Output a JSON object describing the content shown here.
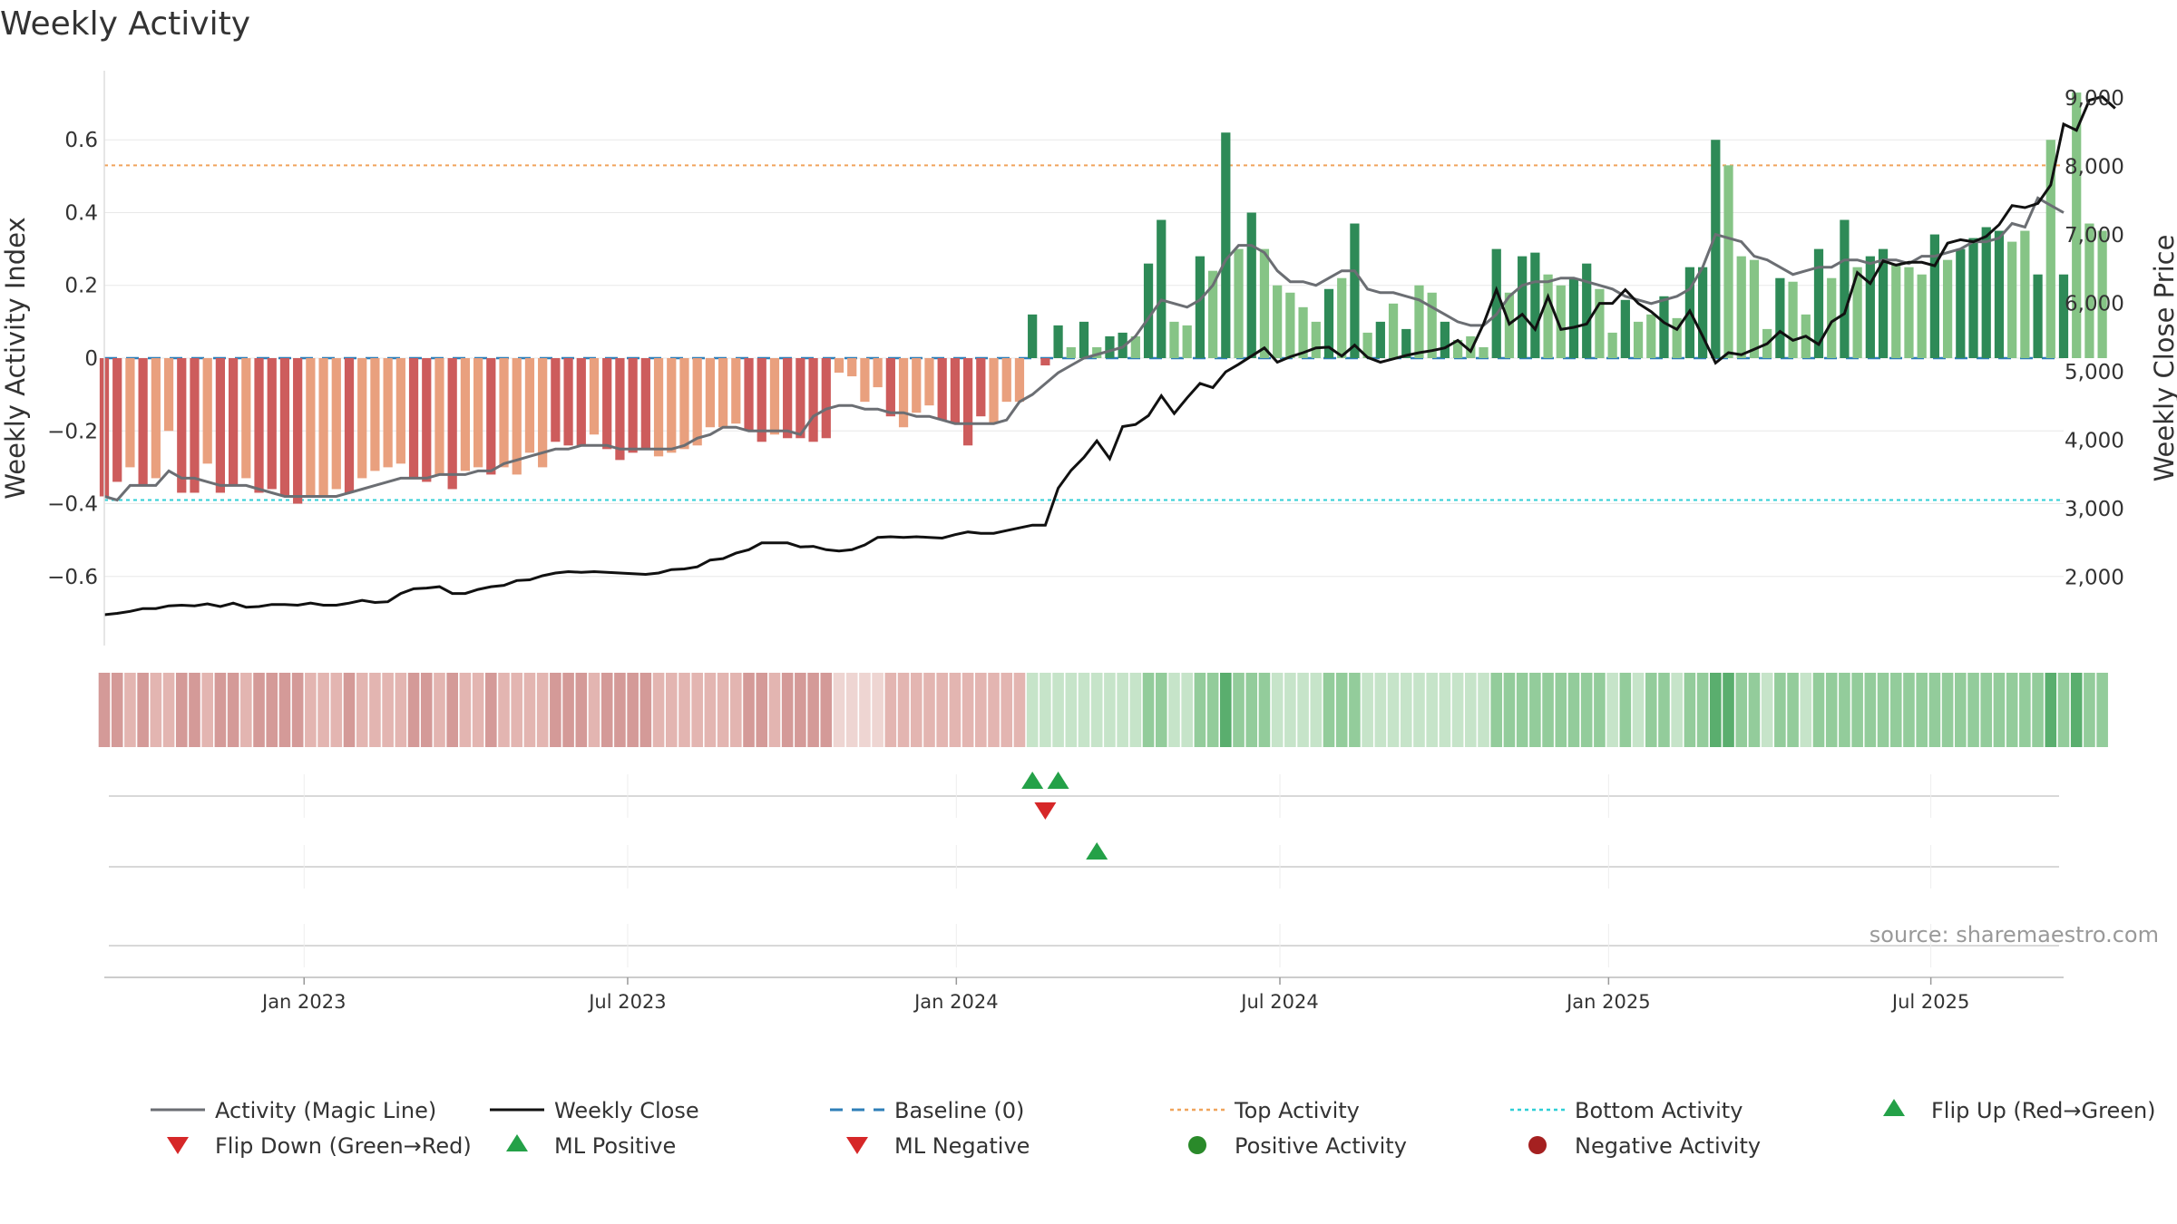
{
  "colors": {
    "magic_line": "#6b6e73",
    "weekly_close": "#111111",
    "baseline": "#2f7fb8",
    "top_activity": "#f0a45c",
    "bottom_activity": "#2fcfd6",
    "positive_dark": "#2e8a57",
    "positive_light": "#86c486",
    "negative_dark": "#cd5c5c",
    "negative_light": "#e9a07e",
    "marker_up": "#24a148",
    "marker_down": "#d62728",
    "positive_dot": "#2a8a2a",
    "negative_dot": "#a52020",
    "grid": "#e8e8e8",
    "source": "#999999"
  },
  "chart_data": {
    "type": "bar",
    "title": "Weekly Activity",
    "ylabel": "Weekly Activity Index",
    "y2label": "Weekly Close Price",
    "source": "source: sharemaestro.com",
    "ylim": [
      -0.79,
      0.79
    ],
    "y2lim": [
      1000,
      9400
    ],
    "yticks": [
      -0.6,
      -0.4,
      -0.2,
      0,
      0.2,
      0.4,
      0.6
    ],
    "ytick_labels": [
      "−0.6",
      "−0.4",
      "−0.2",
      "0",
      "0.2",
      "0.4",
      "0.6"
    ],
    "y2ticks": [
      2000,
      3000,
      4000,
      5000,
      6000,
      7000,
      8000,
      9000
    ],
    "y2tick_labels": [
      "2,000",
      "3,000",
      "4,000",
      "5,000",
      "6,000",
      "7,000",
      "8,000",
      "9,000"
    ],
    "x_week_range": [
      0,
      152
    ],
    "xticks": [
      {
        "label": "Jan 2023",
        "week": 15.5
      },
      {
        "label": "Jul 2023",
        "week": 40.6
      },
      {
        "label": "Jan 2024",
        "week": 66.1
      },
      {
        "label": "Jul 2024",
        "week": 91.2
      },
      {
        "label": "Jan 2025",
        "week": 116.7
      },
      {
        "label": "Jul 2025",
        "week": 141.7
      }
    ],
    "top_activity": 0.53,
    "bottom_activity": -0.39,
    "baseline": 0,
    "activity_index": [
      -0.38,
      -0.34,
      -0.3,
      -0.35,
      -0.33,
      -0.2,
      -0.37,
      -0.37,
      -0.29,
      -0.37,
      -0.35,
      -0.33,
      -0.37,
      -0.36,
      -0.38,
      -0.4,
      -0.38,
      -0.38,
      -0.36,
      -0.37,
      -0.33,
      -0.31,
      -0.3,
      -0.29,
      -0.33,
      -0.34,
      -0.32,
      -0.36,
      -0.31,
      -0.3,
      -0.32,
      -0.3,
      -0.32,
      -0.26,
      -0.3,
      -0.23,
      -0.24,
      -0.24,
      -0.21,
      -0.25,
      -0.28,
      -0.26,
      -0.25,
      -0.27,
      -0.26,
      -0.25,
      -0.24,
      -0.19,
      -0.19,
      -0.18,
      -0.2,
      -0.23,
      -0.21,
      -0.22,
      -0.22,
      -0.23,
      -0.22,
      -0.04,
      -0.05,
      -0.12,
      -0.08,
      -0.16,
      -0.19,
      -0.15,
      -0.13,
      -0.17,
      -0.18,
      -0.24,
      -0.16,
      -0.18,
      -0.12,
      -0.12,
      0.12,
      -0.02,
      0.09,
      0.03,
      0.1,
      0.03,
      0.06,
      0.07,
      0.06,
      0.26,
      0.38,
      0.1,
      0.09,
      0.28,
      0.24,
      0.62,
      0.3,
      0.4,
      0.3,
      0.2,
      0.18,
      0.14,
      0.1,
      0.19,
      0.22,
      0.37,
      0.07,
      0.1,
      0.15,
      0.08,
      0.2,
      0.18,
      0.1,
      0.05,
      0.06,
      0.03,
      0.3,
      0.18,
      0.28,
      0.29,
      0.23,
      0.2,
      0.22,
      0.26,
      0.19,
      0.07,
      0.16,
      0.1,
      0.12,
      0.17,
      0.11,
      0.25,
      0.25,
      0.6,
      0.53,
      0.28,
      0.27,
      0.08,
      0.22,
      0.21,
      0.12,
      0.3,
      0.22,
      0.38,
      0.25,
      0.28,
      0.3,
      0.26,
      0.25,
      0.23,
      0.34,
      0.27,
      0.3,
      0.33,
      0.36,
      0.35,
      0.32,
      0.35,
      0.23,
      0.6,
      0.23,
      0.73,
      0.37,
      0.35
    ],
    "activity_dark": [
      true,
      true,
      false,
      true,
      false,
      false,
      true,
      true,
      false,
      true,
      true,
      false,
      true,
      true,
      true,
      true,
      false,
      false,
      false,
      true,
      false,
      false,
      false,
      false,
      true,
      true,
      false,
      true,
      false,
      false,
      true,
      false,
      false,
      false,
      false,
      true,
      true,
      true,
      false,
      true,
      true,
      true,
      true,
      false,
      false,
      false,
      false,
      false,
      false,
      false,
      true,
      true,
      false,
      true,
      true,
      true,
      true,
      false,
      false,
      false,
      false,
      true,
      false,
      false,
      false,
      true,
      true,
      true,
      true,
      false,
      false,
      false,
      true,
      true,
      true,
      false,
      true,
      false,
      true,
      true,
      false,
      true,
      true,
      false,
      false,
      true,
      false,
      true,
      false,
      true,
      false,
      false,
      false,
      false,
      false,
      true,
      false,
      true,
      false,
      true,
      false,
      true,
      false,
      false,
      true,
      false,
      false,
      false,
      true,
      false,
      true,
      true,
      false,
      false,
      true,
      true,
      false,
      false,
      true,
      false,
      false,
      true,
      false,
      true,
      true,
      true,
      false,
      false,
      false,
      false,
      true,
      false,
      false,
      true,
      false,
      true,
      false,
      true,
      true,
      false,
      false,
      false,
      true,
      false,
      true,
      true,
      true,
      true,
      false,
      false,
      true,
      false,
      true,
      false,
      false
    ],
    "magic_line": [
      -0.38,
      -0.39,
      -0.35,
      -0.35,
      -0.35,
      -0.31,
      -0.33,
      -0.33,
      -0.34,
      -0.35,
      -0.35,
      -0.35,
      -0.36,
      -0.37,
      -0.38,
      -0.38,
      -0.38,
      -0.38,
      -0.38,
      -0.37,
      -0.36,
      -0.35,
      -0.34,
      -0.33,
      -0.33,
      -0.33,
      -0.32,
      -0.32,
      -0.32,
      -0.31,
      -0.31,
      -0.29,
      -0.28,
      -0.27,
      -0.26,
      -0.25,
      -0.25,
      -0.24,
      -0.24,
      -0.24,
      -0.25,
      -0.25,
      -0.25,
      -0.25,
      -0.25,
      -0.24,
      -0.22,
      -0.21,
      -0.19,
      -0.19,
      -0.2,
      -0.2,
      -0.2,
      -0.2,
      -0.21,
      -0.16,
      -0.14,
      -0.13,
      -0.13,
      -0.14,
      -0.14,
      -0.15,
      -0.15,
      -0.16,
      -0.16,
      -0.17,
      -0.18,
      -0.18,
      -0.18,
      -0.18,
      -0.17,
      -0.12,
      -0.1,
      -0.07,
      -0.04,
      -0.02,
      0,
      0.01,
      0.02,
      0.03,
      0.06,
      0.11,
      0.16,
      0.15,
      0.14,
      0.16,
      0.2,
      0.27,
      0.31,
      0.31,
      0.29,
      0.24,
      0.21,
      0.21,
      0.2,
      0.22,
      0.24,
      0.24,
      0.19,
      0.18,
      0.18,
      0.17,
      0.16,
      0.14,
      0.12,
      0.1,
      0.09,
      0.09,
      0.12,
      0.17,
      0.2,
      0.21,
      0.21,
      0.22,
      0.22,
      0.21,
      0.2,
      0.19,
      0.17,
      0.16,
      0.15,
      0.16,
      0.17,
      0.19,
      0.25,
      0.34,
      0.33,
      0.32,
      0.28,
      0.27,
      0.25,
      0.23,
      0.24,
      0.25,
      0.25,
      0.27,
      0.27,
      0.26,
      0.27,
      0.27,
      0.26,
      0.28,
      0.28,
      0.29,
      0.3,
      0.32,
      0.32,
      0.33,
      0.37,
      0.36,
      0.44,
      0.42,
      0.4
    ],
    "weekly_close": [
      1450,
      1470,
      1500,
      1540,
      1540,
      1580,
      1590,
      1580,
      1610,
      1570,
      1620,
      1560,
      1570,
      1600,
      1600,
      1590,
      1620,
      1590,
      1590,
      1620,
      1660,
      1630,
      1640,
      1760,
      1830,
      1840,
      1860,
      1760,
      1760,
      1820,
      1860,
      1880,
      1950,
      1960,
      2020,
      2060,
      2080,
      2070,
      2080,
      2070,
      2060,
      2050,
      2040,
      2060,
      2110,
      2120,
      2150,
      2250,
      2270,
      2350,
      2400,
      2500,
      2500,
      2500,
      2440,
      2450,
      2400,
      2380,
      2400,
      2470,
      2580,
      2590,
      2580,
      2590,
      2580,
      2570,
      2620,
      2660,
      2640,
      2640,
      2680,
      2720,
      2760,
      2760,
      3300,
      3560,
      3750,
      3990,
      3730,
      4200,
      4230,
      4360,
      4650,
      4390,
      4620,
      4830,
      4770,
      5000,
      5110,
      5230,
      5350,
      5140,
      5220,
      5280,
      5350,
      5360,
      5230,
      5390,
      5210,
      5140,
      5190,
      5240,
      5280,
      5310,
      5350,
      5460,
      5300,
      5700,
      6200,
      5700,
      5840,
      5620,
      6100,
      5620,
      5650,
      5700,
      6000,
      6000,
      6200,
      6000,
      5880,
      5720,
      5620,
      5890,
      5520,
      5130,
      5280,
      5250,
      5330,
      5410,
      5590,
      5460,
      5520,
      5400,
      5730,
      5850,
      6450,
      6290,
      6620,
      6560,
      6600,
      6600,
      6550,
      6880,
      6930,
      6900,
      6980,
      7150,
      7430,
      7400,
      7460,
      7730,
      8620,
      8530,
      8970,
      9020,
      8850
    ],
    "heat_strip": [
      "neg-mid",
      "neg-mid",
      "neg-light",
      "neg-mid",
      "neg-light",
      "neg-light",
      "neg-mid",
      "neg-mid",
      "neg-light",
      "neg-mid",
      "neg-mid",
      "neg-light",
      "neg-mid",
      "neg-mid",
      "neg-mid",
      "neg-mid",
      "neg-light",
      "neg-light",
      "neg-light",
      "neg-mid",
      "neg-light",
      "neg-light",
      "neg-light",
      "neg-light",
      "neg-mid",
      "neg-mid",
      "neg-light",
      "neg-mid",
      "neg-light",
      "neg-light",
      "neg-mid",
      "neg-light",
      "neg-light",
      "neg-light",
      "neg-light",
      "neg-mid",
      "neg-mid",
      "neg-mid",
      "neg-light",
      "neg-mid",
      "neg-mid",
      "neg-mid",
      "neg-mid",
      "neg-light",
      "neg-light",
      "neg-light",
      "neg-light",
      "neg-light",
      "neg-light",
      "neg-light",
      "neg-mid",
      "neg-mid",
      "neg-light",
      "neg-mid",
      "neg-mid",
      "neg-mid",
      "neg-mid",
      "neg-pale",
      "neg-pale",
      "neg-pale",
      "neg-pale",
      "neg-light",
      "neg-light",
      "neg-light",
      "neg-light",
      "neg-light",
      "neg-light",
      "neg-light",
      "neg-light",
      "neg-light",
      "neg-light",
      "neg-light",
      "pos-pale",
      "pos-pale",
      "pos-pale",
      "pos-pale",
      "pos-pale",
      "pos-pale",
      "pos-pale",
      "pos-pale",
      "pos-pale",
      "pos-mid",
      "pos-mid",
      "pos-pale",
      "pos-pale",
      "pos-mid",
      "pos-mid",
      "pos-dark",
      "pos-mid",
      "pos-mid",
      "pos-mid",
      "pos-pale",
      "pos-pale",
      "pos-pale",
      "pos-pale",
      "pos-mid",
      "pos-mid",
      "pos-mid",
      "pos-pale",
      "pos-pale",
      "pos-pale",
      "pos-pale",
      "pos-pale",
      "pos-pale",
      "pos-pale",
      "pos-pale",
      "pos-pale",
      "pos-pale",
      "pos-mid",
      "pos-mid",
      "pos-mid",
      "pos-mid",
      "pos-mid",
      "pos-mid",
      "pos-mid",
      "pos-mid",
      "pos-mid",
      "pos-pale",
      "pos-mid",
      "pos-pale",
      "pos-mid",
      "pos-mid",
      "pos-pale",
      "pos-mid",
      "pos-mid",
      "pos-dark",
      "pos-dark",
      "pos-mid",
      "pos-mid",
      "pos-pale",
      "pos-mid",
      "pos-mid",
      "pos-pale",
      "pos-mid",
      "pos-mid",
      "pos-mid",
      "pos-mid",
      "pos-mid",
      "pos-mid",
      "pos-mid",
      "pos-mid",
      "pos-mid",
      "pos-mid",
      "pos-mid",
      "pos-mid",
      "pos-mid",
      "pos-mid",
      "pos-mid",
      "pos-mid",
      "pos-mid",
      "pos-mid",
      "pos-dark",
      "pos-mid",
      "pos-dark",
      "pos-mid",
      "pos-mid"
    ],
    "events": {
      "flip_up": [
        72,
        74
      ],
      "flip_down": [
        73
      ],
      "ml_positive": [
        77
      ],
      "ml_negative": [],
      "positive_activity": [],
      "negative_activity": []
    },
    "legend": [
      {
        "key": "magic",
        "label": "Activity (Magic Line)"
      },
      {
        "key": "close",
        "label": "Weekly Close"
      },
      {
        "key": "baseline",
        "label": "Baseline (0)"
      },
      {
        "key": "top",
        "label": "Top Activity"
      },
      {
        "key": "bottom",
        "label": "Bottom Activity"
      },
      {
        "key": "flip_up",
        "label": "Flip Up (Red→Green)"
      },
      {
        "key": "flip_down",
        "label": "Flip Down (Green→Red)"
      },
      {
        "key": "ml_pos",
        "label": "ML Positive"
      },
      {
        "key": "ml_neg",
        "label": "ML Negative"
      },
      {
        "key": "pos_act",
        "label": "Positive Activity"
      },
      {
        "key": "neg_act",
        "label": "Negative Activity"
      }
    ]
  }
}
